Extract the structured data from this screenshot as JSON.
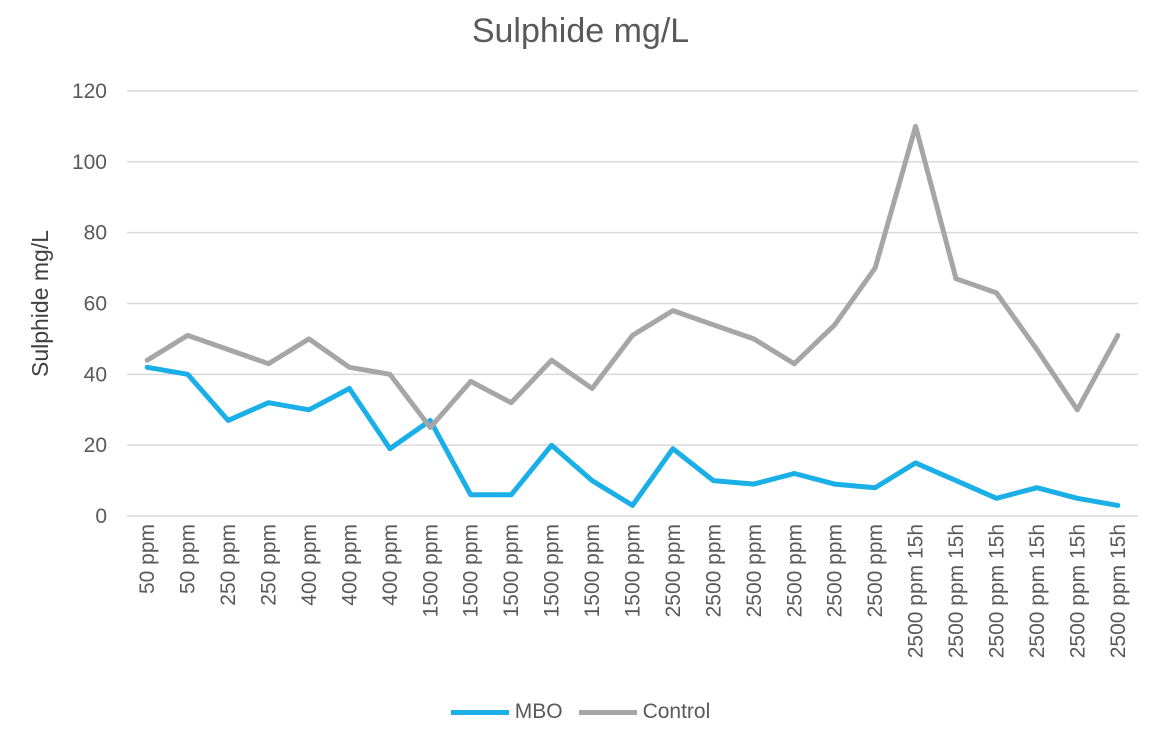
{
  "chart_data": {
    "type": "line",
    "title": "Sulphide mg/L",
    "xlabel": "",
    "ylabel": "Sulphide mg/L",
    "ylim": [
      0,
      120
    ],
    "yticks": [
      0,
      20,
      40,
      60,
      80,
      100,
      120
    ],
    "grid": true,
    "legend_position": "bottom",
    "categories": [
      "50 ppm",
      "50 ppm",
      "250 ppm",
      "250 ppm",
      "400 ppm",
      "400 ppm",
      "400 ppm",
      "1500 ppm",
      "1500 ppm",
      "1500 ppm",
      "1500 ppm",
      "1500 ppm",
      "1500 ppm",
      "2500 ppm",
      "2500 ppm",
      "2500 ppm",
      "2500 ppm",
      "2500 ppm",
      "2500 ppm",
      "2500 ppm 15h",
      "2500 ppm 15h",
      "2500 ppm 15h",
      "2500 ppm 15h",
      "2500 ppm 15h",
      "2500 ppm 15h"
    ],
    "series": [
      {
        "name": "MBO",
        "color": "#1AAFE6",
        "values": [
          42,
          40,
          27,
          32,
          30,
          36,
          19,
          27,
          6,
          6,
          20,
          10,
          3,
          19,
          10,
          9,
          12,
          9,
          8,
          15,
          10,
          5,
          8,
          5,
          3
        ]
      },
      {
        "name": "Control",
        "color": "#A6A6A6",
        "values": [
          44,
          51,
          47,
          43,
          50,
          42,
          40,
          25,
          38,
          32,
          44,
          36,
          51,
          58,
          54,
          50,
          43,
          54,
          70,
          110,
          67,
          63,
          47,
          30,
          51
        ]
      }
    ]
  }
}
